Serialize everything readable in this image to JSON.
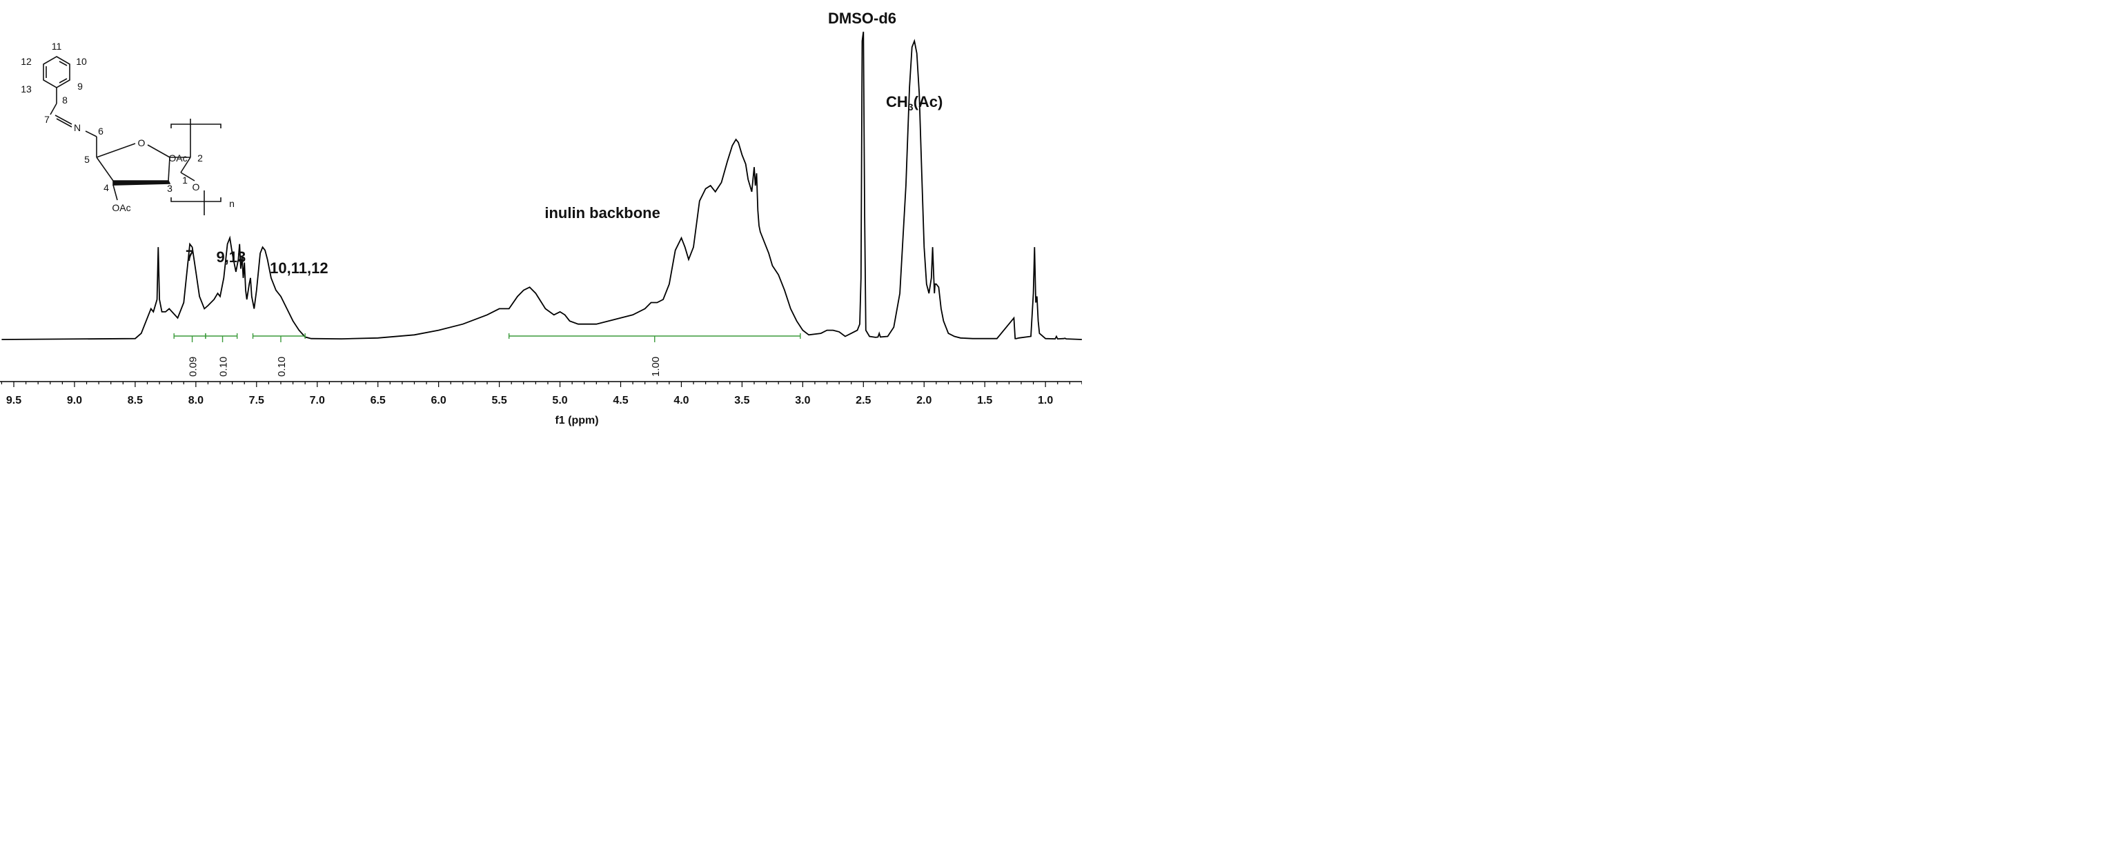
{
  "chart_data": {
    "type": "line",
    "title": "",
    "xlabel": "f1 (ppm)",
    "ylabel": "",
    "x_reversed": true,
    "xlim": [
      9.6,
      0.7
    ],
    "ylim": [
      0,
      1.05
    ],
    "x_ticks": [
      "9.5",
      "9.0",
      "8.5",
      "8.0",
      "7.5",
      "7.0",
      "6.5",
      "6.0",
      "5.5",
      "5.0",
      "4.5",
      "4.0",
      "3.5",
      "3.0",
      "2.5",
      "2.0",
      "1.5",
      "1.0"
    ],
    "series": [
      {
        "x": [
          9.6,
          8.5,
          8.45,
          8.4,
          8.37,
          8.35,
          8.32,
          8.31,
          8.3,
          8.28,
          8.25,
          8.22,
          8.15,
          8.1,
          8.05,
          8.03,
          8.0,
          7.97,
          7.93,
          7.9,
          7.85,
          7.82,
          7.8,
          7.77,
          7.74,
          7.72,
          7.7,
          7.67,
          7.65,
          7.64,
          7.63,
          7.62,
          7.61,
          7.6,
          7.59,
          7.58,
          7.56,
          7.55,
          7.54,
          7.52,
          7.5,
          7.47,
          7.45,
          7.43,
          7.41,
          7.38,
          7.34,
          7.3,
          7.25,
          7.2,
          7.15,
          7.1,
          7.05,
          6.8,
          6.5,
          6.2,
          6.0,
          5.8,
          5.6,
          5.5,
          5.42,
          5.35,
          5.3,
          5.25,
          5.2,
          5.12,
          5.05,
          5.0,
          4.96,
          4.92,
          4.85,
          4.7,
          4.5,
          4.4,
          4.3,
          4.25,
          4.2,
          4.15,
          4.1,
          4.05,
          4.0,
          3.97,
          3.94,
          3.9,
          3.85,
          3.8,
          3.76,
          3.72,
          3.67,
          3.62,
          3.58,
          3.55,
          3.53,
          3.5,
          3.47,
          3.45,
          3.42,
          3.4,
          3.39,
          3.38,
          3.37,
          3.36,
          3.35,
          3.32,
          3.28,
          3.25,
          3.2,
          3.15,
          3.1,
          3.05,
          3.0,
          2.95,
          2.85,
          2.8,
          2.75,
          2.7,
          2.65,
          2.6,
          2.55,
          2.53,
          2.52,
          2.51,
          2.5,
          2.49,
          2.48,
          2.45,
          2.4,
          2.38,
          2.37,
          2.36,
          2.3,
          2.25,
          2.2,
          2.15,
          2.12,
          2.1,
          2.08,
          2.06,
          2.04,
          2.02,
          2.0,
          1.98,
          1.96,
          1.94,
          1.93,
          1.92,
          1.915,
          1.91,
          1.9,
          1.88,
          1.86,
          1.84,
          1.82,
          1.8,
          1.75,
          1.7,
          1.6,
          1.4,
          1.26,
          1.25,
          1.24,
          1.22,
          1.12,
          1.1,
          1.09,
          1.08,
          1.07,
          1.06,
          1.05,
          1.0,
          0.92,
          0.91,
          0.9,
          0.85,
          0.84,
          0.83,
          0.7
        ],
        "y": [
          0.0,
          0.003,
          0.02,
          0.07,
          0.1,
          0.09,
          0.13,
          0.3,
          0.13,
          0.09,
          0.09,
          0.1,
          0.07,
          0.12,
          0.31,
          0.3,
          0.22,
          0.14,
          0.1,
          0.11,
          0.13,
          0.15,
          0.14,
          0.2,
          0.31,
          0.33,
          0.28,
          0.22,
          0.26,
          0.31,
          0.23,
          0.27,
          0.2,
          0.25,
          0.16,
          0.13,
          0.18,
          0.2,
          0.14,
          0.1,
          0.16,
          0.28,
          0.3,
          0.29,
          0.26,
          0.2,
          0.16,
          0.14,
          0.1,
          0.06,
          0.03,
          0.008,
          0.003,
          0.002,
          0.005,
          0.015,
          0.03,
          0.05,
          0.08,
          0.1,
          0.1,
          0.14,
          0.16,
          0.17,
          0.15,
          0.1,
          0.08,
          0.09,
          0.08,
          0.06,
          0.05,
          0.05,
          0.07,
          0.08,
          0.1,
          0.12,
          0.12,
          0.13,
          0.18,
          0.29,
          0.33,
          0.3,
          0.26,
          0.3,
          0.45,
          0.49,
          0.5,
          0.48,
          0.51,
          0.58,
          0.63,
          0.65,
          0.64,
          0.6,
          0.57,
          0.52,
          0.48,
          0.56,
          0.5,
          0.54,
          0.42,
          0.37,
          0.35,
          0.32,
          0.28,
          0.24,
          0.21,
          0.16,
          0.1,
          0.06,
          0.03,
          0.015,
          0.02,
          0.03,
          0.03,
          0.025,
          0.01,
          0.02,
          0.03,
          0.05,
          0.2,
          0.97,
          1.0,
          0.4,
          0.03,
          0.01,
          0.007,
          0.008,
          0.02,
          0.008,
          0.01,
          0.04,
          0.15,
          0.5,
          0.82,
          0.95,
          0.97,
          0.93,
          0.8,
          0.55,
          0.3,
          0.18,
          0.15,
          0.2,
          0.3,
          0.2,
          0.15,
          0.18,
          0.18,
          0.17,
          0.1,
          0.06,
          0.04,
          0.02,
          0.01,
          0.005,
          0.003,
          0.003,
          0.07,
          0.003,
          0.003,
          0.005,
          0.01,
          0.15,
          0.3,
          0.12,
          0.14,
          0.06,
          0.02,
          0.003,
          0.002,
          0.01,
          0.002,
          0.003,
          0.004,
          0.002,
          0.0
        ]
      }
    ],
    "integrals": [
      {
        "from": 8.18,
        "to": 7.92,
        "center": 8.03,
        "label": "0.09"
      },
      {
        "from": 7.92,
        "to": 7.66,
        "center": 7.78,
        "label": "0.10"
      },
      {
        "from": 7.53,
        "to": 7.1,
        "center": 7.3,
        "label": "0.10"
      },
      {
        "from": 5.42,
        "to": 3.02,
        "center": 4.22,
        "label": "1.00"
      }
    ],
    "annotations": [
      {
        "text": "7",
        "x": 8.05
      },
      {
        "text": "9,13",
        "x": 7.71
      },
      {
        "text": "10,11,12",
        "x": 7.15
      },
      {
        "text": "inulin backbone",
        "x": 4.65
      },
      {
        "text": "DMSO-d6",
        "x": 2.51
      },
      {
        "text": "CH",
        "sub": "3",
        "suffix": "(Ac)",
        "x": 2.08
      }
    ],
    "structure_labels": {
      "atoms": [
        "7",
        "N",
        "6",
        "5",
        "4",
        "3",
        "1",
        "2",
        "8",
        "9",
        "10",
        "11",
        "12",
        "13",
        "O",
        "O",
        "OAc",
        "OAc",
        "n"
      ]
    }
  }
}
